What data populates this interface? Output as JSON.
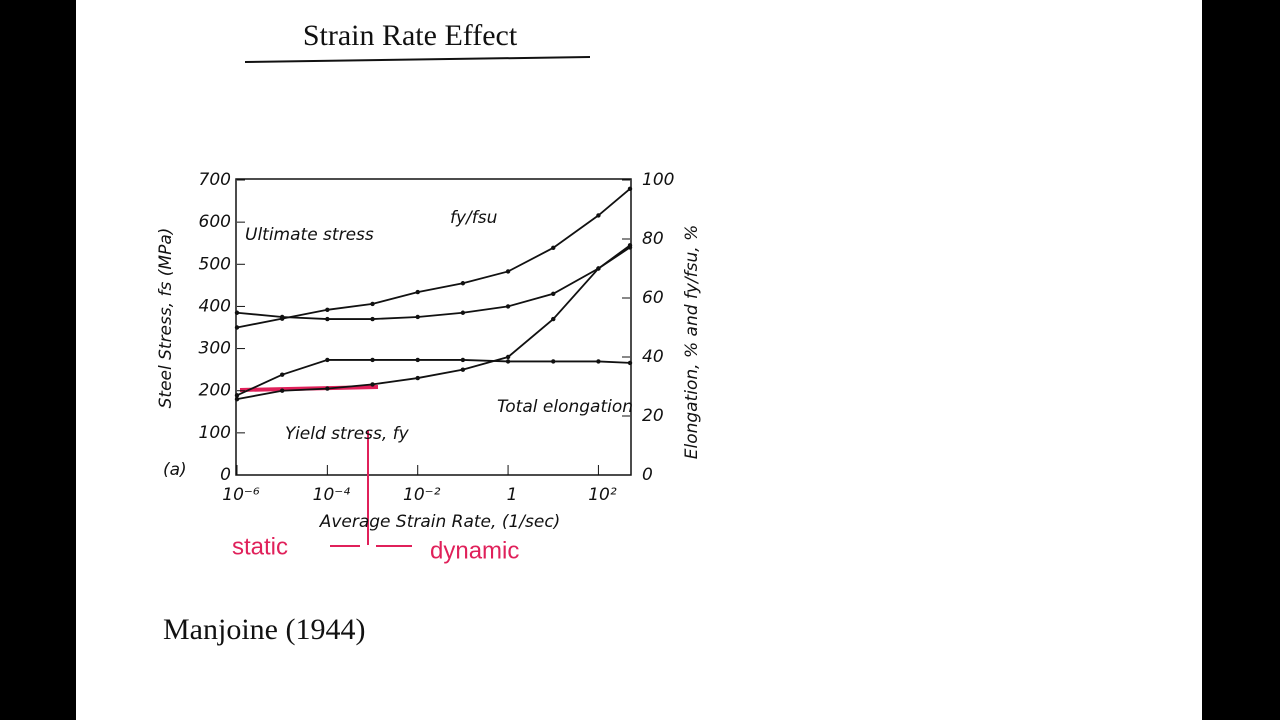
{
  "page": {
    "heading": "Strain Rate Effect",
    "citation": "Manjoine (1944)",
    "annotations": [
      "static",
      "dynamic"
    ]
  },
  "chart_data": {
    "type": "line",
    "panel_label": "(a)",
    "x_label": "Average Strain Rate, (1/sec)",
    "y_label": "Steel Stress, fs (MPa)",
    "y2_label": "Elongation, % and fy/fsu, %",
    "x_scale": "log",
    "xlim": [
      1e-06,
      500
    ],
    "xticks": [
      {
        "value": 1e-06,
        "label": "10⁻⁶"
      },
      {
        "value": 0.0001,
        "label": "10⁻⁴"
      },
      {
        "value": 0.01,
        "label": "10⁻²"
      },
      1,
      {
        "value": 100,
        "label": "10²"
      }
    ],
    "ylim": [
      0,
      700
    ],
    "yticks": [
      0,
      100,
      200,
      300,
      400,
      500,
      600,
      700
    ],
    "y2lim": [
      0,
      100
    ],
    "y2ticks": [
      0,
      20,
      40,
      60,
      80,
      100
    ],
    "x": [
      1e-06,
      1e-05,
      0.0001,
      0.001,
      0.01,
      0.1,
      1,
      10,
      100,
      500
    ],
    "series": [
      {
        "name": "Ultimate stress",
        "color": "#111111",
        "values": [
          385,
          375,
          370,
          370,
          375,
          385,
          400,
          430,
          490,
          540
        ]
      },
      {
        "name": "Yield stress, fy",
        "color": "#111111",
        "values": [
          180,
          200,
          205,
          215,
          230,
          250,
          280,
          370,
          490,
          545
        ]
      },
      {
        "name": "fy/fsu",
        "color": "#111111",
        "axis": "y2",
        "values": [
          50,
          53,
          56,
          58,
          62,
          65,
          69,
          77,
          88,
          97
        ]
      },
      {
        "name": "Total elongation",
        "color": "#111111",
        "axis": "y2",
        "values": [
          27,
          34,
          39,
          39,
          39,
          39,
          38.5,
          38.5,
          38.5,
          38
        ]
      }
    ]
  }
}
